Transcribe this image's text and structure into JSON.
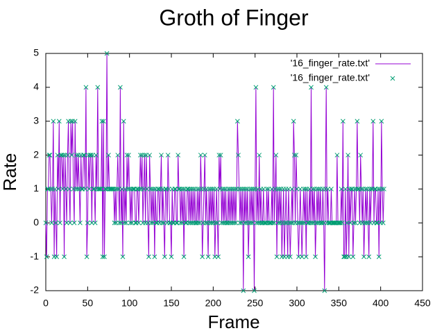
{
  "chart_data": {
    "type": "line",
    "title": "Groth of Finger",
    "x_label": "Frame",
    "y_label": "Rate",
    "xlim": [
      0,
      450
    ],
    "xticks": [
      0,
      50,
      100,
      150,
      200,
      250,
      300,
      350,
      400,
      450
    ],
    "ylim": [
      -2,
      5
    ],
    "yticks": [
      -2,
      -1,
      0,
      1,
      2,
      3,
      4,
      5
    ],
    "legend": "top-right",
    "series": [
      {
        "name": "'16_finger_rate.txt'",
        "color": "#9400d3",
        "style": "lines",
        "values": [
          0,
          -1,
          1,
          1,
          2,
          2,
          1,
          0,
          1,
          3,
          -1,
          1,
          0,
          -1,
          2,
          1,
          3,
          0,
          2,
          2,
          1,
          2,
          -1,
          2,
          1,
          0,
          2,
          3,
          1,
          0,
          3,
          2,
          3,
          1,
          0,
          3,
          1,
          2,
          1,
          2,
          1,
          0,
          2,
          1,
          1,
          2,
          2,
          1,
          4,
          -1,
          0,
          2,
          1,
          2,
          2,
          0,
          2,
          1,
          1,
          0,
          2,
          1,
          4,
          1,
          1,
          1,
          1,
          3,
          -1,
          3,
          -1,
          1,
          1,
          5,
          1,
          2,
          1,
          1,
          1,
          1,
          1,
          1,
          0,
          1,
          0,
          1,
          2,
          1,
          0,
          4,
          0,
          1,
          -1,
          3,
          0,
          1,
          0,
          2,
          1,
          2,
          1,
          0,
          1,
          0,
          1,
          1,
          1,
          0,
          0,
          1,
          1,
          0,
          1,
          2,
          1,
          2,
          0,
          1,
          2,
          0,
          2,
          1,
          0,
          -1,
          2,
          1,
          0,
          1,
          0,
          1,
          -1,
          1,
          0,
          0,
          1,
          1,
          0,
          1,
          2,
          0,
          1,
          0,
          -1,
          1,
          1,
          0,
          2,
          1,
          0,
          0,
          -1,
          1,
          0,
          0,
          1,
          1,
          0,
          0,
          2,
          1,
          1,
          0,
          1,
          0,
          1,
          -1,
          1,
          0,
          0,
          1,
          1,
          0,
          1,
          0,
          1,
          0,
          1,
          0,
          1,
          0,
          0,
          1,
          0,
          1,
          0,
          2,
          1,
          -1,
          0,
          1,
          2,
          0,
          1,
          0,
          -1,
          1,
          0,
          1,
          0,
          1,
          0,
          1,
          -1,
          0,
          1,
          0,
          -1,
          2,
          1,
          2,
          0,
          1,
          0,
          1,
          0,
          1,
          0,
          0,
          1,
          0,
          1,
          0,
          1,
          0,
          1,
          0,
          1,
          0,
          1,
          3,
          2,
          1,
          0,
          1,
          0,
          1,
          -2,
          1,
          0,
          1,
          0,
          1,
          -1,
          0,
          1,
          0,
          1,
          0,
          1,
          -2,
          1,
          4,
          0,
          1,
          0,
          2,
          0,
          1,
          0,
          0,
          1,
          0,
          0,
          0,
          1,
          0,
          1,
          0,
          0,
          0,
          1,
          0,
          4,
          0,
          1,
          2,
          -1,
          1,
          0,
          1,
          0,
          1,
          -1,
          0,
          1,
          -1,
          0,
          1,
          0,
          -1,
          1,
          0,
          -1,
          0,
          1,
          0,
          3,
          2,
          0,
          2,
          1,
          0,
          -1,
          0,
          1,
          0,
          -1,
          0,
          1,
          0,
          1,
          -1,
          1,
          0,
          0,
          1,
          0,
          4,
          0,
          1,
          0,
          1,
          -1,
          0,
          1,
          0,
          1,
          0,
          1,
          0,
          0,
          1,
          0,
          -2,
          1,
          4,
          0,
          1,
          0,
          0,
          0,
          1,
          0,
          0,
          0,
          0,
          0,
          0,
          2,
          0,
          0,
          0,
          0,
          1,
          0,
          3,
          -1,
          -1,
          1,
          -1,
          0,
          2,
          -1,
          1,
          0,
          1,
          1,
          -1,
          0,
          1,
          0,
          1,
          3,
          1,
          1,
          0,
          2,
          1,
          0,
          1,
          -1,
          0,
          1,
          0,
          1,
          0,
          -1,
          1,
          0,
          1,
          1,
          3,
          0,
          1,
          1,
          0,
          0,
          1,
          -1,
          1,
          0,
          3,
          1,
          0,
          1
        ]
      },
      {
        "name": "'16_finger_rate.txt'",
        "color": "#009e73",
        "style": "points",
        "values": [
          0,
          -1,
          1,
          1,
          2,
          2,
          1,
          0,
          1,
          3,
          -1,
          1,
          0,
          -1,
          2,
          1,
          3,
          0,
          2,
          2,
          1,
          2,
          -1,
          2,
          1,
          0,
          2,
          3,
          1,
          0,
          3,
          2,
          3,
          1,
          0,
          3,
          1,
          2,
          1,
          2,
          1,
          0,
          2,
          1,
          1,
          2,
          2,
          1,
          4,
          -1,
          0,
          2,
          1,
          2,
          2,
          0,
          2,
          1,
          1,
          0,
          2,
          1,
          4,
          1,
          1,
          1,
          1,
          3,
          -1,
          3,
          -1,
          1,
          1,
          5,
          1,
          2,
          1,
          1,
          1,
          1,
          1,
          1,
          0,
          1,
          0,
          1,
          2,
          1,
          0,
          4,
          0,
          1,
          -1,
          3,
          0,
          1,
          0,
          2,
          1,
          2,
          1,
          0,
          1,
          0,
          1,
          1,
          1,
          0,
          0,
          1,
          1,
          0,
          1,
          2,
          1,
          2,
          0,
          1,
          2,
          0,
          2,
          1,
          0,
          -1,
          2,
          1,
          0,
          1,
          0,
          1,
          -1,
          1,
          0,
          0,
          1,
          1,
          0,
          1,
          2,
          0,
          1,
          0,
          -1,
          1,
          1,
          0,
          2,
          1,
          0,
          0,
          -1,
          1,
          0,
          0,
          1,
          1,
          0,
          0,
          2,
          1,
          1,
          0,
          1,
          0,
          1,
          -1,
          1,
          0,
          0,
          1,
          1,
          0,
          1,
          0,
          1,
          0,
          1,
          0,
          1,
          0,
          0,
          1,
          0,
          1,
          0,
          2,
          1,
          -1,
          0,
          1,
          2,
          0,
          1,
          0,
          -1,
          1,
          0,
          1,
          0,
          1,
          0,
          1,
          -1,
          0,
          1,
          0,
          -1,
          2,
          1,
          2,
          0,
          1,
          0,
          1,
          0,
          1,
          0,
          0,
          1,
          0,
          1,
          0,
          1,
          0,
          1,
          0,
          1,
          0,
          1,
          3,
          2,
          1,
          0,
          1,
          0,
          1,
          -2,
          1,
          0,
          1,
          0,
          1,
          -1,
          0,
          1,
          0,
          1,
          0,
          1,
          -2,
          1,
          4,
          0,
          1,
          0,
          2,
          0,
          1,
          0,
          0,
          1,
          0,
          0,
          0,
          1,
          0,
          1,
          0,
          0,
          0,
          1,
          0,
          4,
          0,
          1,
          2,
          -1,
          1,
          0,
          1,
          0,
          1,
          -1,
          0,
          1,
          -1,
          0,
          1,
          0,
          -1,
          1,
          0,
          -1,
          0,
          1,
          0,
          3,
          2,
          0,
          2,
          1,
          0,
          -1,
          0,
          1,
          0,
          -1,
          0,
          1,
          0,
          1,
          -1,
          1,
          0,
          0,
          1,
          0,
          4,
          0,
          1,
          0,
          1,
          -1,
          0,
          1,
          0,
          1,
          0,
          1,
          0,
          0,
          1,
          0,
          -2,
          1,
          4,
          0,
          1,
          0,
          0,
          0,
          1,
          0,
          0,
          0,
          0,
          0,
          0,
          2,
          0,
          0,
          0,
          0,
          1,
          0,
          3,
          -1,
          -1,
          1,
          -1,
          0,
          2,
          -1,
          1,
          0,
          1,
          1,
          -1,
          0,
          1,
          0,
          1,
          3,
          1,
          1,
          0,
          2,
          1,
          0,
          1,
          -1,
          0,
          1,
          0,
          1,
          0,
          -1,
          1,
          0,
          1,
          1,
          3,
          0,
          1,
          1,
          0,
          0,
          1,
          -1,
          1,
          0,
          3,
          1,
          0,
          1
        ]
      }
    ]
  }
}
